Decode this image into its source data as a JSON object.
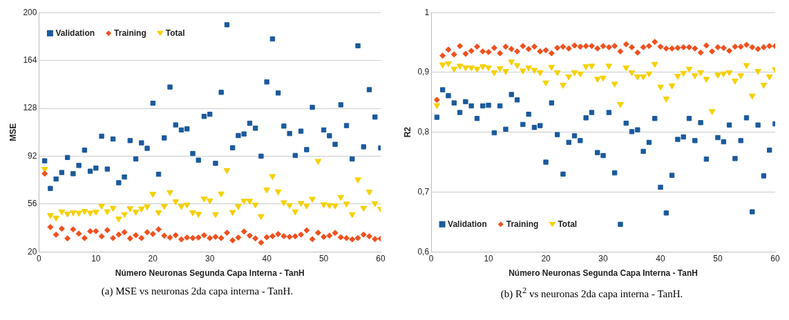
{
  "chart_data": [
    {
      "type": "scatter",
      "xlabel": "Número Neuronas Segunda Capa Interna - TanH",
      "ylabel": "MSE",
      "x": [
        1,
        2,
        3,
        4,
        5,
        6,
        7,
        8,
        9,
        10,
        11,
        12,
        13,
        14,
        15,
        16,
        17,
        18,
        19,
        20,
        21,
        22,
        23,
        24,
        25,
        26,
        27,
        28,
        29,
        30,
        31,
        32,
        33,
        34,
        35,
        36,
        37,
        38,
        39,
        40,
        41,
        42,
        43,
        44,
        45,
        46,
        47,
        48,
        49,
        50,
        51,
        52,
        53,
        54,
        55,
        56,
        57,
        58,
        59,
        60
      ],
      "xlim": [
        0,
        60
      ],
      "xticks": [
        0,
        10,
        20,
        30,
        40,
        50,
        60
      ],
      "ylim": [
        20,
        200
      ],
      "yticks": [
        20,
        56,
        92,
        128,
        164,
        200
      ],
      "grid": "y",
      "legend": "top left",
      "annotations": [
        "(a) MSE vs neuronas 2da capa interna - TanH."
      ],
      "series": [
        {
          "name": "Validation",
          "color": "#1b5a9c",
          "marker": "square",
          "values": [
            88.5,
            67.7,
            74.8,
            79.7,
            91,
            78.8,
            85,
            96.5,
            80.7,
            83,
            107,
            82.3,
            104.9,
            72,
            76.3,
            103.7,
            89.9,
            102,
            97.9,
            131.8,
            78.4,
            105.7,
            144,
            115.5,
            111.7,
            112.5,
            94,
            89,
            121.9,
            123.5,
            86.6,
            140,
            190.8,
            98.3,
            107.5,
            108.7,
            116.7,
            113,
            92,
            147.8,
            180.2,
            139.5,
            114.6,
            109,
            92.5,
            110.8,
            96.9,
            128.7,
            null,
            111.7,
            107.3,
            100.9,
            130.6,
            115,
            89.9,
            175,
            99,
            142,
            121.4,
            98.2
          ]
        },
        {
          "name": "Training",
          "color": "#f0501e",
          "marker": "diamond",
          "values": [
            78.8,
            38.6,
            32.9,
            37.4,
            30.1,
            36.9,
            33.7,
            30.4,
            35.5,
            35.5,
            31.7,
            36.3,
            30.4,
            33,
            34.8,
            30.1,
            32.5,
            30.4,
            34.8,
            33.4,
            36.9,
            32.2,
            30.8,
            32.5,
            29.4,
            30.8,
            30.4,
            30.8,
            32.5,
            30.4,
            31.3,
            30.4,
            34.4,
            28.7,
            30.8,
            35.3,
            32.2,
            30.1,
            27,
            31,
            31.8,
            33.4,
            31.8,
            31.3,
            31.7,
            33,
            36.2,
            29.6,
            34.4,
            31.3,
            32.2,
            34.3,
            31,
            30.4,
            29.4,
            30.4,
            33,
            31.7,
            29.6,
            29.9
          ]
        },
        {
          "name": "Total",
          "color": "#f5d000",
          "marker": "triangle",
          "values": [
            82.3,
            47.5,
            45.6,
            50.3,
            48.7,
            49.7,
            49.4,
            50.6,
            49.4,
            50.1,
            54.6,
            50.4,
            53,
            45,
            48.3,
            52.7,
            50.1,
            52.5,
            54.1,
            63.5,
            49.7,
            54.4,
            64.9,
            57.9,
            54.4,
            55.5,
            49.7,
            48.5,
            60,
            58.6,
            48.3,
            63.8,
            81.4,
            49.9,
            54.3,
            58.3,
            58.3,
            55.5,
            46.8,
            66.8,
            76.9,
            65.4,
            57.2,
            55.1,
            50.3,
            56.7,
            54.8,
            59.8,
            88.3,
            55.7,
            55.1,
            54.8,
            61.2,
            56.2,
            48.2,
            74.4,
            53,
            65.2,
            56.5,
            52.3
          ]
        }
      ]
    },
    {
      "type": "scatter",
      "xlabel": "Número Neuronas Segunda Capa Interna - TanH",
      "ylabel": "R2",
      "x": [
        1,
        2,
        3,
        4,
        5,
        6,
        7,
        8,
        9,
        10,
        11,
        12,
        13,
        14,
        15,
        16,
        17,
        18,
        19,
        20,
        21,
        22,
        23,
        24,
        25,
        26,
        27,
        28,
        29,
        30,
        31,
        32,
        33,
        34,
        35,
        36,
        37,
        38,
        39,
        40,
        41,
        42,
        43,
        44,
        45,
        46,
        47,
        48,
        49,
        50,
        51,
        52,
        53,
        54,
        55,
        56,
        57,
        58,
        59,
        60
      ],
      "xlim": [
        0,
        60
      ],
      "xticks": [
        0,
        10,
        20,
        30,
        40,
        50,
        60
      ],
      "ylim": [
        0.6,
        1
      ],
      "yticks": [
        {
          "value": 0.6,
          "label": "0,6"
        },
        {
          "value": 0.7,
          "label": "0,7"
        },
        {
          "value": 0.8,
          "label": "0,8"
        },
        {
          "value": 0.9,
          "label": "0,9"
        },
        1
      ],
      "grid": "y",
      "legend": "bottom left",
      "annotations": [
        "(b) R$^{2}$ vs neuronas 2da capa interna - TanH."
      ],
      "series": [
        {
          "name": "Validation",
          "color": "#1b5a9c",
          "marker": "square",
          "values": [
            0.825,
            0.871,
            0.861,
            0.849,
            0.833,
            0.851,
            0.844,
            0.823,
            0.844,
            0.845,
            0.799,
            0.844,
            0.805,
            0.863,
            0.854,
            0.813,
            0.83,
            0.808,
            0.811,
            0.75,
            0.849,
            0.796,
            0.73,
            0.783,
            0.794,
            0.786,
            0.824,
            0.833,
            0.766,
            0.761,
            0.833,
            0.732,
            0.646,
            0.815,
            0.801,
            0.804,
            0.768,
            0.783,
            0.823,
            0.708,
            0.665,
            0.728,
            0.788,
            0.792,
            0.823,
            0.786,
            0.816,
            0.755,
            null,
            0.791,
            0.784,
            0.812,
            0.756,
            0.786,
            0.824,
            0.667,
            0.812,
            0.727,
            0.77,
            0.814
          ]
        },
        {
          "name": "Training",
          "color": "#f0501e",
          "marker": "diamond",
          "values": [
            0.854,
            0.928,
            0.938,
            0.93,
            0.944,
            0.931,
            0.936,
            0.943,
            0.935,
            0.934,
            0.941,
            0.932,
            0.943,
            0.939,
            0.935,
            0.944,
            0.939,
            0.943,
            0.935,
            0.937,
            0.932,
            0.941,
            0.943,
            0.94,
            0.945,
            0.943,
            0.944,
            0.944,
            0.94,
            0.944,
            0.942,
            0.944,
            0.935,
            0.947,
            0.942,
            0.933,
            0.942,
            0.944,
            0.951,
            0.943,
            0.94,
            0.94,
            0.941,
            0.942,
            0.942,
            0.94,
            0.933,
            0.945,
            0.935,
            0.942,
            0.941,
            0.936,
            0.943,
            0.943,
            0.946,
            0.942,
            0.939,
            0.942,
            0.944,
            0.944
          ]
        },
        {
          "name": "Total",
          "color": "#f5d000",
          "marker": "triangle",
          "values": [
            0.845,
            0.913,
            0.915,
            0.906,
            0.911,
            0.908,
            0.908,
            0.906,
            0.91,
            0.908,
            0.9,
            0.907,
            0.902,
            0.918,
            0.912,
            0.903,
            0.908,
            0.904,
            0.9,
            0.883,
            0.909,
            0.9,
            0.879,
            0.893,
            0.9,
            0.898,
            0.91,
            0.911,
            0.889,
            0.891,
            0.911,
            0.881,
            0.847,
            0.908,
            0.9,
            0.893,
            0.893,
            0.898,
            0.914,
            0.876,
            0.856,
            0.878,
            0.894,
            0.899,
            0.906,
            0.895,
            0.9,
            0.889,
            0.835,
            0.896,
            0.898,
            0.9,
            0.886,
            0.895,
            0.912,
            0.861,
            0.902,
            0.879,
            0.893,
            0.905
          ]
        }
      ]
    }
  ]
}
